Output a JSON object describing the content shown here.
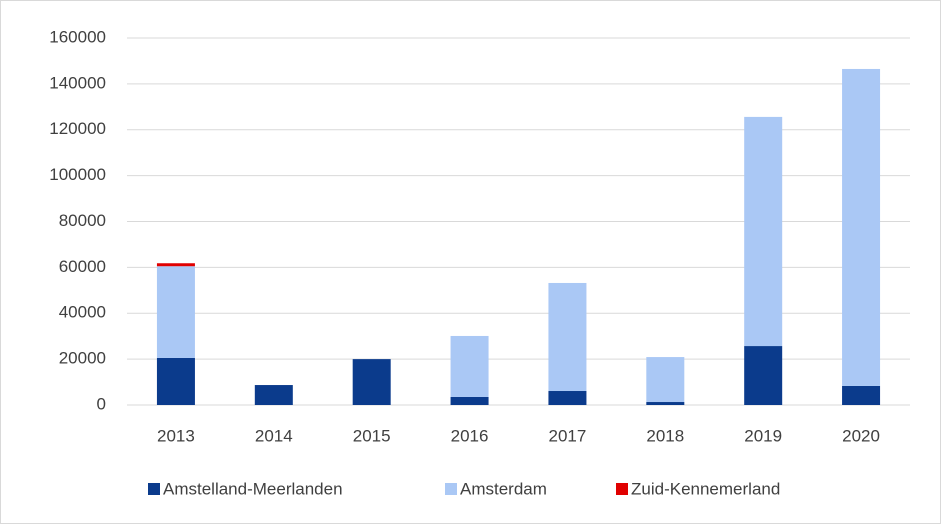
{
  "chart_data": {
    "type": "stacked_bar",
    "categories": [
      "2013",
      "2014",
      "2015",
      "2016",
      "2017",
      "2018",
      "2019",
      "2020"
    ],
    "series": [
      {
        "name": "Amstelland-Meerlanden",
        "color": "#0b3b8c",
        "values": [
          20500,
          8700,
          20000,
          3500,
          6100,
          1300,
          25700,
          8300
        ]
      },
      {
        "name": "Amsterdam",
        "color": "#aac8f5",
        "values": [
          40000,
          0,
          0,
          26600,
          47100,
          19600,
          99900,
          138200
        ]
      },
      {
        "name": "Zuid-Kennemerland",
        "color": "#e00000",
        "values": [
          1300,
          0,
          0,
          0,
          0,
          0,
          0,
          0
        ]
      }
    ],
    "ylim": [
      0,
      160000
    ],
    "yticks": [
      0,
      20000,
      40000,
      60000,
      80000,
      100000,
      120000,
      140000,
      160000
    ],
    "grid": true,
    "legend": "bottom"
  }
}
